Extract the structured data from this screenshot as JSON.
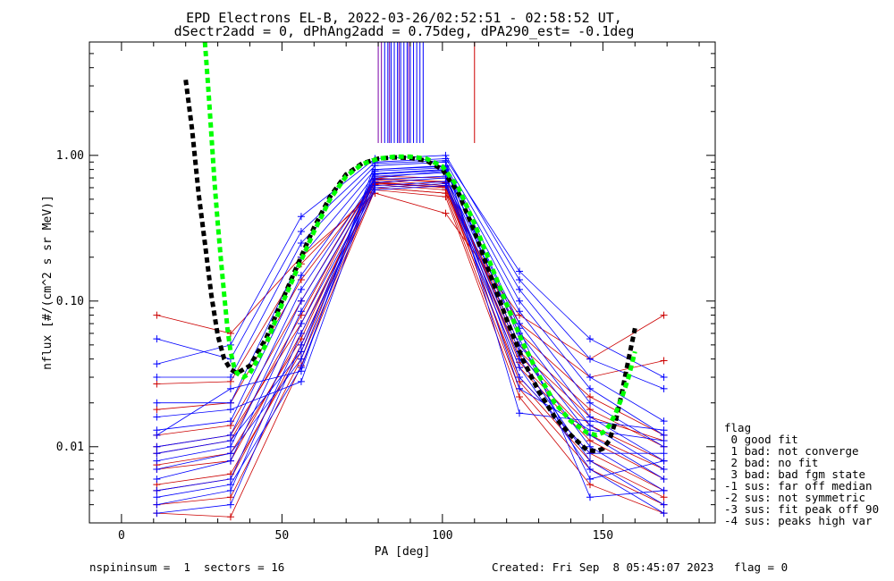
{
  "title": {
    "line1": "EPD Electrons EL-B, 2022-03-26/02:52:51 - 02:58:52 UT,",
    "line2": "dSectr2add = 0, dPhAng2add = 0.75deg, dPA290_est=  -0.1deg"
  },
  "footer": {
    "left": "nspininsum =  1  sectors = 16",
    "right": "Created: Fri Sep  8 05:45:07 2023   flag = 0"
  },
  "legend": {
    "title": "flag",
    "items": [
      " 0 good fit",
      " 1 bad: not converge",
      " 2 bad: no fit",
      " 3 bad: bad fgm state",
      "-1 sus: far off median",
      "-2 sus: not symmetric",
      "-3 sus: fit peak off 90",
      "-4 sus: peaks high var"
    ]
  },
  "colors": {
    "series_a": "#0000ff",
    "series_b": "#cc0000",
    "fit_black": "#000000",
    "fit_green": "#00ff00",
    "marker_purple": "#7a00a8"
  },
  "chart_data": {
    "type": "line",
    "xlabel": "PA [deg]",
    "ylabel": "nflux [#/(cm^2 s sr MeV)]",
    "xlim": [
      -10,
      185
    ],
    "ylim": [
      0.003,
      6.0
    ],
    "yscale": "log",
    "grid": false,
    "legend_placement": "right",
    "x_ticks": [
      0,
      50,
      100,
      150
    ],
    "x_tick_labels": [
      "0",
      "50",
      "100",
      "150"
    ],
    "y_ticks": [
      0.01,
      0.1,
      1.0
    ],
    "y_tick_labels": [
      "0.01",
      "0.10",
      "1.00"
    ],
    "pa_bins": [
      11,
      34,
      56,
      79,
      101,
      124,
      146,
      169
    ],
    "series": [
      {
        "color": "blue",
        "profiles": [
          [
            0.055,
            0.04,
            0.3,
            0.9,
            0.95,
            0.16,
            0.055,
            0.03
          ],
          [
            0.037,
            0.05,
            0.38,
            0.95,
            1.0,
            0.14,
            0.04,
            0.025
          ],
          [
            0.03,
            0.03,
            0.25,
            0.85,
            0.9,
            0.12,
            0.03,
            0.015
          ],
          [
            0.02,
            0.02,
            0.2,
            0.8,
            0.85,
            0.1,
            0.025,
            0.012
          ],
          [
            0.013,
            0.015,
            0.15,
            0.75,
            0.8,
            0.085,
            0.02,
            0.01
          ],
          [
            0.01,
            0.012,
            0.12,
            0.7,
            0.78,
            0.07,
            0.016,
            0.008
          ],
          [
            0.008,
            0.01,
            0.1,
            0.68,
            0.72,
            0.06,
            0.014,
            0.007
          ],
          [
            0.006,
            0.008,
            0.085,
            0.65,
            0.7,
            0.05,
            0.012,
            0.006
          ],
          [
            0.005,
            0.006,
            0.07,
            0.62,
            0.66,
            0.045,
            0.01,
            0.005
          ],
          [
            0.004,
            0.005,
            0.06,
            0.6,
            0.64,
            0.04,
            0.008,
            0.004
          ],
          [
            0.0035,
            0.004,
            0.05,
            0.58,
            0.62,
            0.035,
            0.007,
            0.0035
          ],
          [
            0.012,
            0.025,
            0.033,
            0.88,
            0.92,
            0.017,
            0.015,
            0.013
          ],
          [
            0.016,
            0.018,
            0.028,
            0.72,
            0.76,
            0.025,
            0.013,
            0.011
          ],
          [
            0.009,
            0.011,
            0.045,
            0.8,
            0.84,
            0.03,
            0.009,
            0.009
          ],
          [
            0.007,
            0.009,
            0.04,
            0.78,
            0.82,
            0.055,
            0.006,
            0.008
          ],
          [
            0.0045,
            0.0055,
            0.035,
            0.74,
            0.79,
            0.065,
            0.0045,
            0.005
          ]
        ]
      },
      {
        "color": "red",
        "profiles": [
          [
            0.08,
            0.06,
            0.2,
            0.55,
            0.4,
            0.08,
            0.04,
            0.08
          ],
          [
            0.027,
            0.028,
            0.18,
            0.6,
            0.55,
            0.07,
            0.03,
            0.039
          ],
          [
            0.018,
            0.02,
            0.14,
            0.65,
            0.6,
            0.06,
            0.022,
            0.012
          ],
          [
            0.012,
            0.014,
            0.1,
            0.7,
            0.65,
            0.05,
            0.018,
            0.01
          ],
          [
            0.009,
            0.011,
            0.08,
            0.68,
            0.62,
            0.042,
            0.014,
            0.008
          ],
          [
            0.007,
            0.008,
            0.06,
            0.66,
            0.6,
            0.035,
            0.011,
            0.006
          ],
          [
            0.005,
            0.006,
            0.05,
            0.63,
            0.58,
            0.03,
            0.009,
            0.005
          ],
          [
            0.004,
            0.0045,
            0.04,
            0.6,
            0.55,
            0.025,
            0.007,
            0.004
          ],
          [
            0.0035,
            0.0033,
            0.036,
            0.58,
            0.52,
            0.022,
            0.0055,
            0.0035
          ],
          [
            0.01,
            0.012,
            0.07,
            0.72,
            0.7,
            0.045,
            0.016,
            0.011
          ],
          [
            0.0075,
            0.009,
            0.055,
            0.69,
            0.66,
            0.038,
            0.012,
            0.007
          ],
          [
            0.0055,
            0.0065,
            0.045,
            0.64,
            0.61,
            0.028,
            0.008,
            0.0045
          ]
        ]
      }
    ],
    "fits": [
      {
        "color": "black",
        "x": [
          20,
          22,
          24,
          26,
          28,
          30,
          32,
          34,
          36,
          40,
          45,
          50,
          55,
          60,
          65,
          70,
          75,
          80,
          85,
          90,
          95,
          100,
          105,
          110,
          115,
          120,
          125,
          130,
          135,
          140,
          145,
          148,
          150,
          152,
          154,
          156,
          158,
          160
        ],
        "y": [
          3.3,
          1.5,
          0.55,
          0.25,
          0.11,
          0.058,
          0.04,
          0.034,
          0.032,
          0.036,
          0.055,
          0.1,
          0.18,
          0.32,
          0.52,
          0.74,
          0.88,
          0.95,
          0.97,
          0.96,
          0.92,
          0.8,
          0.55,
          0.3,
          0.15,
          0.075,
          0.04,
          0.024,
          0.016,
          0.012,
          0.0095,
          0.0093,
          0.0097,
          0.011,
          0.015,
          0.024,
          0.04,
          0.065
        ]
      },
      {
        "color": "green",
        "x": [
          26,
          27,
          28,
          29,
          30,
          31,
          32,
          33,
          34,
          35,
          36,
          38,
          40,
          45,
          50,
          55,
          60,
          65,
          70,
          75,
          80,
          85,
          90,
          95,
          100,
          105,
          110,
          115,
          120,
          125,
          130,
          135,
          140,
          145,
          148,
          150,
          152,
          154,
          156,
          158,
          160
        ],
        "y": [
          6.0,
          3.0,
          1.4,
          0.65,
          0.34,
          0.19,
          0.11,
          0.065,
          0.045,
          0.036,
          0.032,
          0.03,
          0.032,
          0.05,
          0.095,
          0.17,
          0.3,
          0.5,
          0.72,
          0.87,
          0.95,
          0.98,
          0.98,
          0.95,
          0.84,
          0.6,
          0.34,
          0.18,
          0.095,
          0.052,
          0.031,
          0.02,
          0.015,
          0.0125,
          0.012,
          0.0125,
          0.014,
          0.017,
          0.022,
          0.03,
          0.045
        ]
      }
    ],
    "top_markers": {
      "blue": [
        82,
        83,
        84,
        85,
        86,
        87,
        88,
        89,
        90,
        91,
        92,
        93,
        94
      ],
      "purple": [
        80,
        81,
        83.5,
        86.5,
        89.5
      ],
      "red": [
        110
      ]
    }
  }
}
